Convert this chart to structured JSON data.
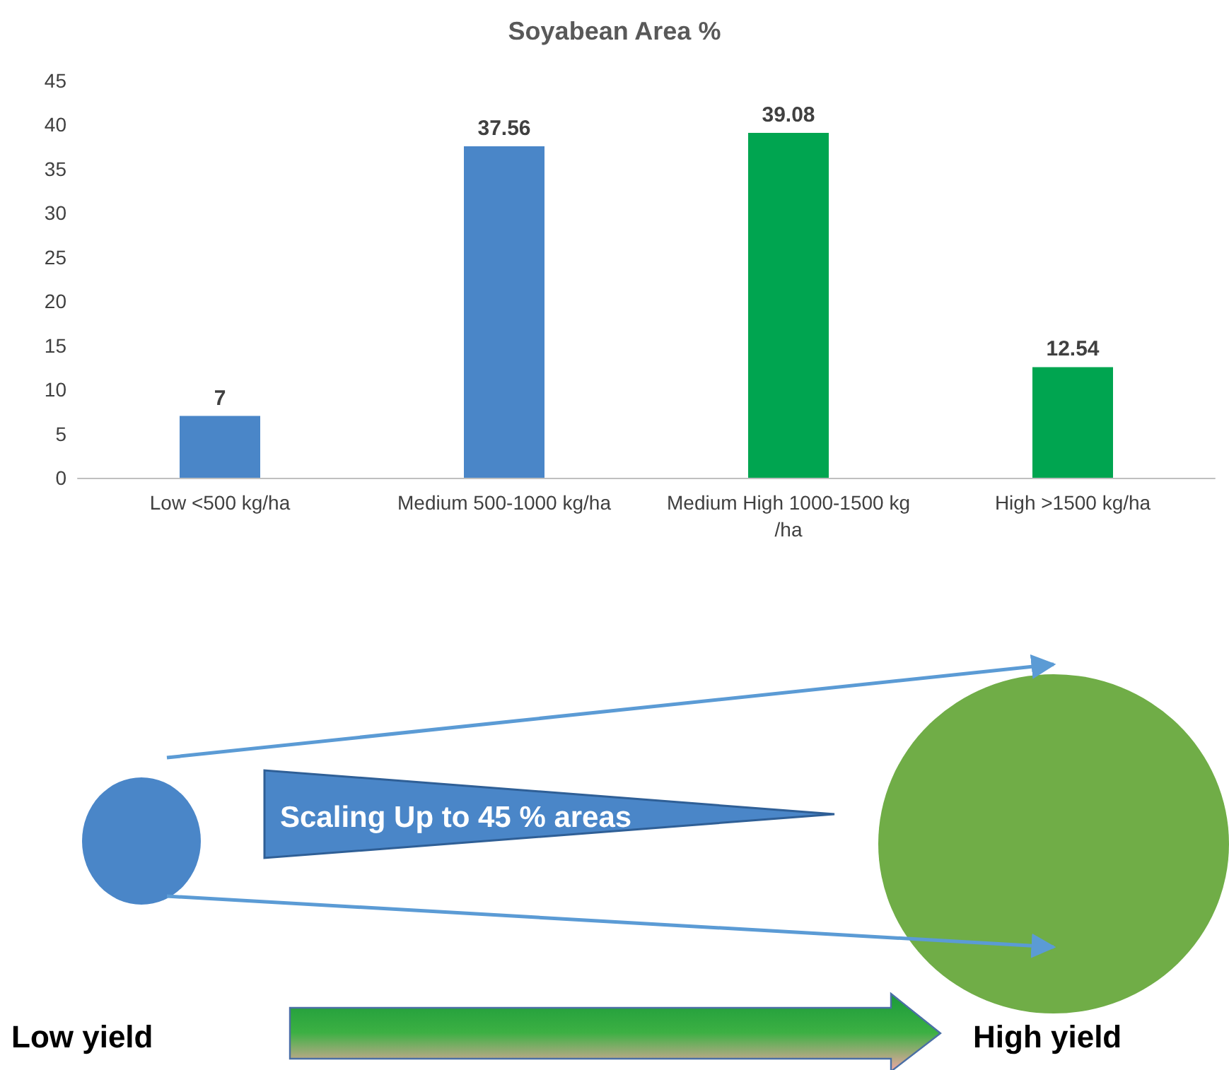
{
  "chart_data": {
    "type": "bar",
    "title": "Soyabean Area %",
    "categories": [
      "Low <500 kg/ha",
      "Medium 500-1000 kg/ha",
      "Medium High 1000-1500 kg/ha",
      "High >1500 kg/ha"
    ],
    "values": [
      7,
      37.56,
      39.08,
      12.54
    ],
    "colors": [
      "#4a86c8",
      "#4a86c8",
      "#00a550",
      "#00a550"
    ],
    "ylim": [
      0,
      45
    ],
    "yticks": [
      0,
      5,
      10,
      15,
      20,
      25,
      30,
      35,
      40,
      45
    ],
    "data_labels": true,
    "annotations": [
      "Scaling Up to 45 % areas",
      "Low yield",
      "High yield"
    ]
  }
}
